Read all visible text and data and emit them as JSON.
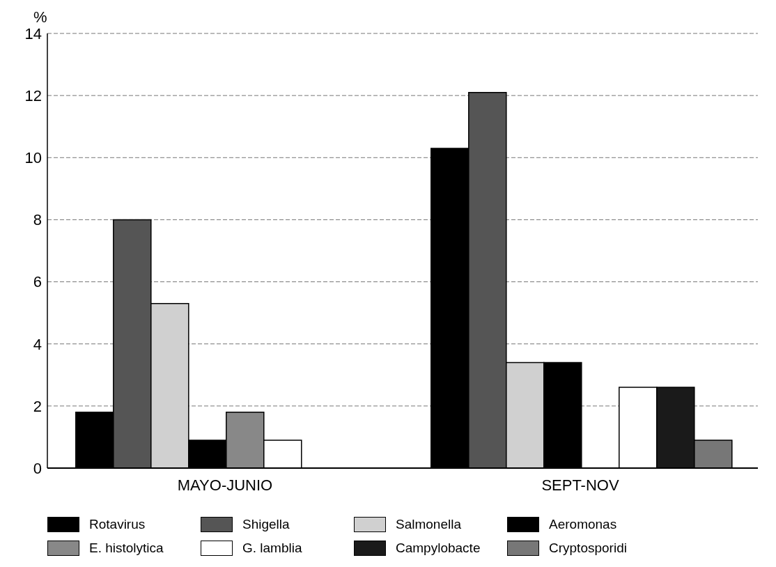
{
  "chart_data": {
    "type": "bar",
    "ylabel": "%",
    "categories": [
      "MAYO-JUNIO",
      "SEPT-NOV"
    ],
    "series": [
      {
        "name": "Rotavirus",
        "color": "#000000",
        "values": [
          1.8,
          10.3
        ]
      },
      {
        "name": "Shigella",
        "color": "#555555",
        "values": [
          8.0,
          12.1
        ]
      },
      {
        "name": "Salmonella",
        "color": "#d0d0d0",
        "values": [
          5.3,
          3.4
        ]
      },
      {
        "name": "Aeromonas",
        "color": "#000000",
        "values": [
          0.9,
          3.4
        ]
      },
      {
        "name": "E. histolytica",
        "color": "#888888",
        "values": [
          1.8,
          0
        ]
      },
      {
        "name": "G. lamblia",
        "color": "#ffffff",
        "values": [
          0.9,
          2.6
        ]
      },
      {
        "name": "Campylobacte",
        "color": "#1a1a1a",
        "values": [
          0,
          2.6
        ]
      },
      {
        "name": "Cryptosporidi",
        "color": "#777777",
        "values": [
          0,
          0.9
        ]
      }
    ],
    "ylim": [
      0,
      14
    ],
    "yticks": [
      0,
      2,
      4,
      6,
      8,
      10,
      12,
      14
    ],
    "grid": "y",
    "legend": "bottom"
  }
}
